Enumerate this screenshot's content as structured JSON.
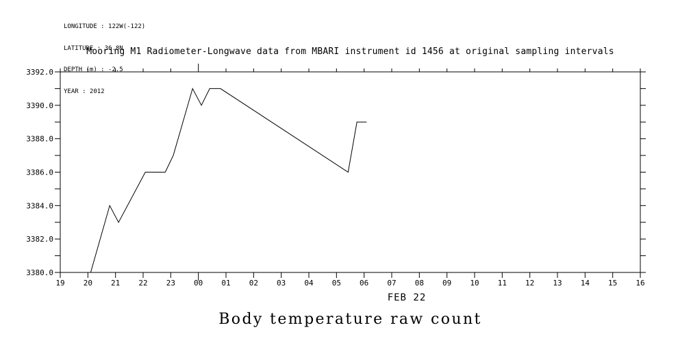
{
  "meta": {
    "longitude": "LONGITUDE : 122W(-122)",
    "latitude": "LATITUDE : 36.8N",
    "depth": "DEPTH (m) : -2.5",
    "year": "YEAR : 2012"
  },
  "title": "Mooring M1 Radiometer-Longwave data from MBARI instrument id 1456 at original sampling intervals",
  "chart_data": {
    "type": "line",
    "title": "Mooring M1 Radiometer-Longwave data from MBARI instrument id 1456 at original sampling intervals",
    "caption": "Body temperature raw count",
    "xlabel": "FEB 22",
    "ylabel": "",
    "grid": false,
    "legend": "none",
    "line_color": "#000000",
    "x_ticks": [
      "19",
      "20",
      "21",
      "22",
      "23",
      "00",
      "01",
      "02",
      "03",
      "04",
      "05",
      "06",
      "07",
      "08",
      "09",
      "10",
      "11",
      "12",
      "13",
      "14",
      "15",
      "16"
    ],
    "x_range_hours": [
      19,
      40
    ],
    "x_big_tick_label": "00",
    "ylim": [
      3380.0,
      3392.0
    ],
    "y_major_step": 2.0,
    "y_minor_step": 1.0,
    "y_tick_labels": [
      "3380.0",
      "3382.0",
      "3384.0",
      "3386.0",
      "3388.0",
      "3390.0",
      "3392.0"
    ],
    "series": [
      {
        "name": "body-temperature-raw-count",
        "points": [
          [
            20.1,
            3380.0
          ],
          [
            20.79,
            3384.0
          ],
          [
            21.11,
            3383.0
          ],
          [
            22.08,
            3386.0
          ],
          [
            22.8,
            3386.0
          ],
          [
            23.09,
            3387.0
          ],
          [
            23.79,
            3391.0
          ],
          [
            24.11,
            3390.0
          ],
          [
            24.41,
            3391.0
          ],
          [
            24.8,
            3391.0
          ],
          [
            29.42,
            3386.0
          ],
          [
            29.74,
            3389.0
          ],
          [
            30.09,
            3389.0
          ]
        ]
      }
    ]
  }
}
